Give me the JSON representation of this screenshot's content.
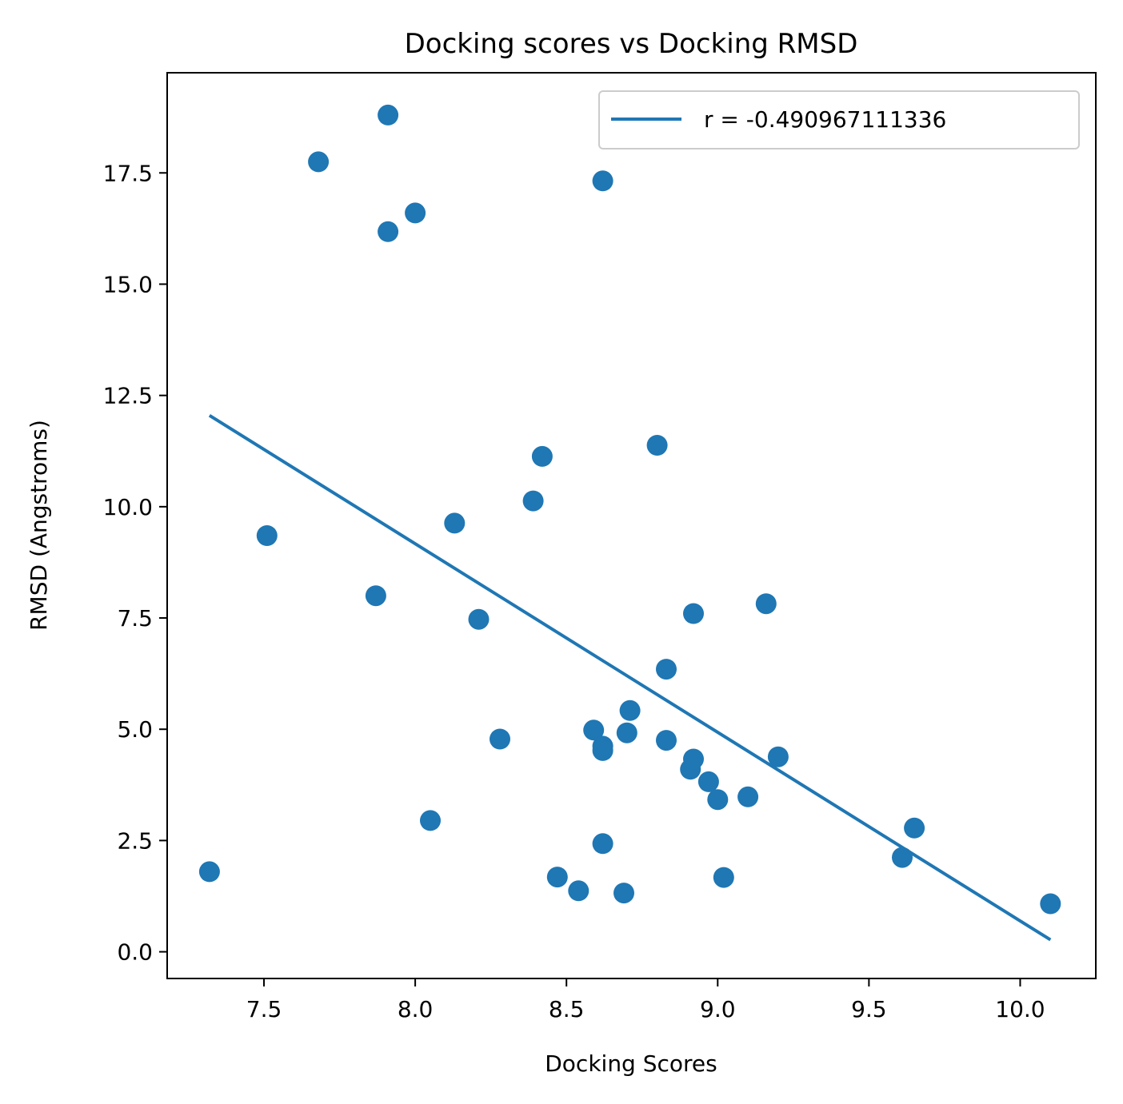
{
  "chart_data": {
    "type": "scatter",
    "title": "Docking scores vs Docking RMSD",
    "xlabel": "Docking Scores",
    "ylabel": "RMSD (Angstroms)",
    "xlim": [
      7.18,
      10.25
    ],
    "ylim": [
      -0.6,
      19.75
    ],
    "xticks": [
      7.5,
      8.0,
      8.5,
      9.0,
      9.5,
      10.0
    ],
    "xtick_labels": [
      "7.5",
      "8.0",
      "8.5",
      "9.0",
      "9.5",
      "10.0"
    ],
    "yticks": [
      0.0,
      2.5,
      5.0,
      7.5,
      10.0,
      12.5,
      15.0,
      17.5
    ],
    "ytick_labels": [
      "0.0",
      "2.5",
      "5.0",
      "7.5",
      "10.0",
      "12.5",
      "15.0",
      "17.5"
    ],
    "legend": {
      "location": "top-right",
      "entries": [
        "r = -0.490967111336"
      ]
    },
    "colors": {
      "points": "#1f77b4",
      "line": "#1f77b4"
    },
    "series": [
      {
        "name": "data",
        "kind": "scatter",
        "points": [
          [
            7.32,
            1.8
          ],
          [
            7.51,
            9.35
          ],
          [
            7.68,
            17.75
          ],
          [
            7.87,
            8.0
          ],
          [
            7.91,
            18.8
          ],
          [
            7.91,
            16.18
          ],
          [
            8.0,
            16.6
          ],
          [
            8.05,
            2.95
          ],
          [
            8.13,
            9.63
          ],
          [
            8.21,
            7.47
          ],
          [
            8.28,
            4.78
          ],
          [
            8.39,
            10.13
          ],
          [
            8.42,
            11.13
          ],
          [
            8.47,
            1.68
          ],
          [
            8.54,
            1.37
          ],
          [
            8.59,
            4.98
          ],
          [
            8.62,
            4.62
          ],
          [
            8.62,
            4.52
          ],
          [
            8.62,
            2.43
          ],
          [
            8.62,
            17.32
          ],
          [
            8.69,
            1.32
          ],
          [
            8.7,
            4.92
          ],
          [
            8.71,
            5.42
          ],
          [
            8.8,
            11.38
          ],
          [
            8.83,
            6.35
          ],
          [
            8.83,
            4.75
          ],
          [
            8.91,
            4.1
          ],
          [
            8.92,
            4.33
          ],
          [
            8.92,
            7.6
          ],
          [
            8.97,
            3.82
          ],
          [
            9.0,
            3.42
          ],
          [
            9.02,
            1.67
          ],
          [
            9.1,
            3.48
          ],
          [
            9.16,
            7.82
          ],
          [
            9.2,
            4.38
          ],
          [
            9.61,
            2.12
          ],
          [
            9.65,
            2.78
          ],
          [
            10.1,
            1.08
          ]
        ]
      },
      {
        "name": "r = -0.490967111336",
        "kind": "line",
        "points": [
          [
            7.32,
            12.05
          ],
          [
            10.1,
            0.27
          ]
        ]
      }
    ]
  }
}
